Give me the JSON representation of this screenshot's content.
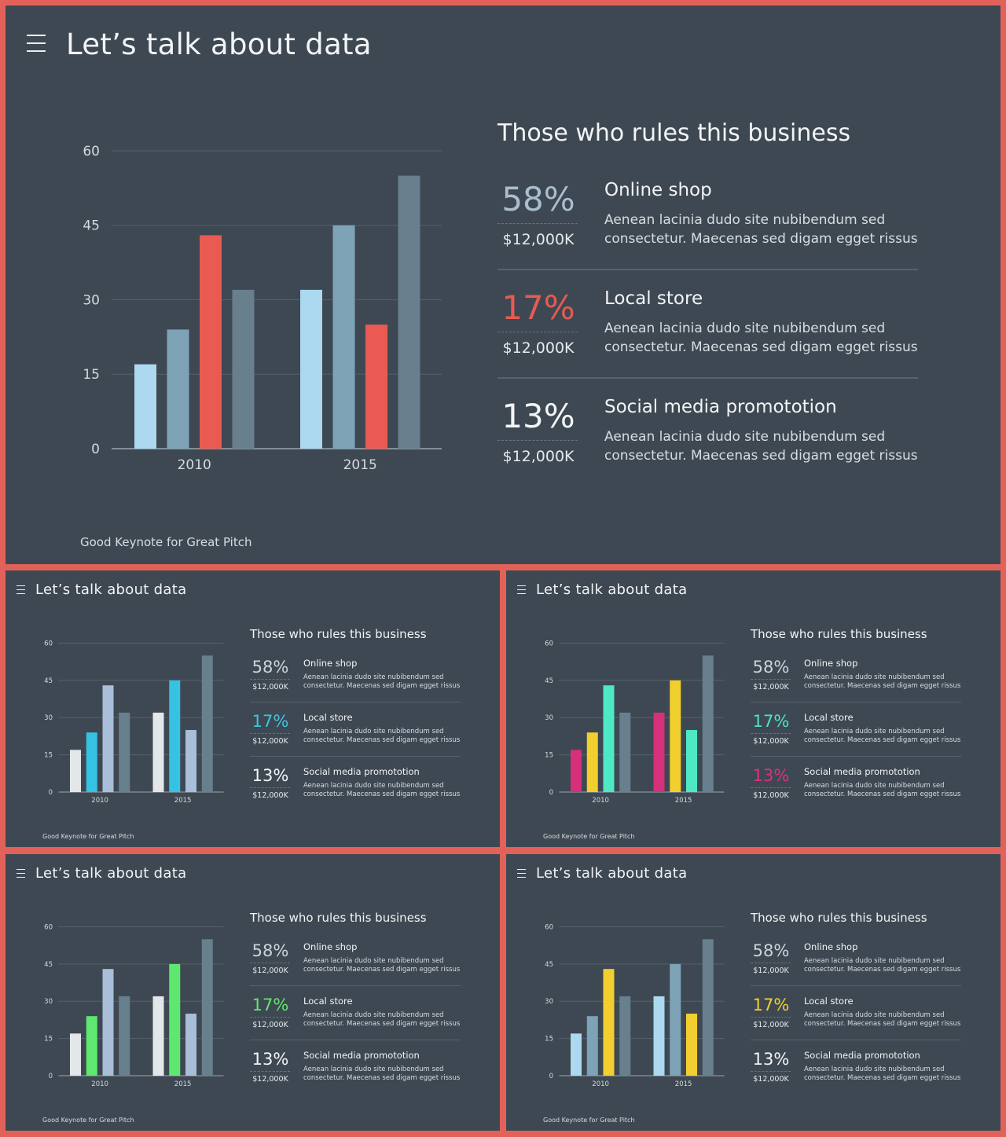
{
  "slides": [
    {
      "title": "Let’s talk about data",
      "footer": "Good Keynote for Great Pitch",
      "panel": {
        "heading": "Those who rules this business",
        "items": [
          {
            "percent": "58%",
            "amount": "$12,000K",
            "name": "Online shop",
            "desc": "Aenean lacinia  dudo  site nubibendum sed consectetur. Maecenas sed digam egget rissus",
            "color": "#a9bfce"
          },
          {
            "percent": "17%",
            "amount": "$12,000K",
            "name": "Local store",
            "desc": "Aenean lacinia  dudo  site nubibendum sed consectetur. Maecenas sed digam egget rissus",
            "color": "#e85a52"
          },
          {
            "percent": "13%",
            "amount": "$12,000K",
            "name": "Social media promototion",
            "desc": "Aenean lacinia  dudo  site nubibendum sed consectetur. Maecenas sed digam egget rissus",
            "color": "#f2f4f6"
          }
        ]
      },
      "chart_data": {
        "type": "bar",
        "categories": [
          "2010",
          "2015"
        ],
        "ylim": [
          0,
          60
        ],
        "yticks": [
          0,
          15,
          30,
          45,
          60
        ],
        "series": [
          {
            "values": [
              17,
              32
            ],
            "color": "#acd8f0"
          },
          {
            "values": [
              24,
              45
            ],
            "color": "#7ea3b7"
          },
          {
            "values": [
              43,
              25
            ],
            "color": "#e85a52"
          },
          {
            "values": [
              32,
              55
            ],
            "color": "#687f8e"
          }
        ]
      }
    },
    {
      "title": "Let’s talk about data",
      "footer": "Good Keynote for Great Pitch",
      "panel": {
        "heading": "Those who rules this business",
        "items": [
          {
            "percent": "58%",
            "amount": "$12,000K",
            "name": "Online shop",
            "desc": "Aenean lacinia  dudo  site nubibendum sed consectetur. Maecenas sed digam egget rissus",
            "color": "#c9d4dc"
          },
          {
            "percent": "17%",
            "amount": "$12,000K",
            "name": "Local store",
            "desc": "Aenean lacinia  dudo  site nubibendum sed consectetur. Maecenas sed digam egget rissus",
            "color": "#3fc4e0"
          },
          {
            "percent": "13%",
            "amount": "$12,000K",
            "name": "Social media promototion",
            "desc": "Aenean lacinia  dudo  site nubibendum sed consectetur. Maecenas sed digam egget rissus",
            "color": "#f2f4f6"
          }
        ]
      },
      "chart_data": {
        "type": "bar",
        "categories": [
          "2010",
          "2015"
        ],
        "ylim": [
          0,
          60
        ],
        "yticks": [
          0,
          15,
          30,
          45,
          60
        ],
        "series": [
          {
            "values": [
              17,
              32
            ],
            "color": "#e3e7ea"
          },
          {
            "values": [
              24,
              45
            ],
            "color": "#36c2e3"
          },
          {
            "values": [
              43,
              25
            ],
            "color": "#a9bed8"
          },
          {
            "values": [
              32,
              55
            ],
            "color": "#687f8e"
          }
        ]
      }
    },
    {
      "title": "Let’s talk about data",
      "footer": "Good Keynote for Great Pitch",
      "panel": {
        "heading": "Those who rules this business",
        "items": [
          {
            "percent": "58%",
            "amount": "$12,000K",
            "name": "Online shop",
            "desc": "Aenean lacinia  dudo  site nubibendum sed consectetur. Maecenas sed digam egget rissus",
            "color": "#c9d4dc"
          },
          {
            "percent": "17%",
            "amount": "$12,000K",
            "name": "Local store",
            "desc": "Aenean lacinia  dudo  site nubibendum sed consectetur. Maecenas sed digam egget rissus",
            "color": "#4ee3c4"
          },
          {
            "percent": "13%",
            "amount": "$12,000K",
            "name": "Social media promototion",
            "desc": "Aenean lacinia  dudo  site nubibendum sed consectetur. Maecenas sed digam egget rissus",
            "color": "#e0307a"
          }
        ]
      },
      "chart_data": {
        "type": "bar",
        "categories": [
          "2010",
          "2015"
        ],
        "ylim": [
          0,
          60
        ],
        "yticks": [
          0,
          15,
          30,
          45,
          60
        ],
        "series": [
          {
            "values": [
              17,
              32
            ],
            "color": "#d6307a"
          },
          {
            "values": [
              24,
              45
            ],
            "color": "#f1cf2e"
          },
          {
            "values": [
              43,
              25
            ],
            "color": "#4ee8c4"
          },
          {
            "values": [
              32,
              55
            ],
            "color": "#687f8e"
          }
        ]
      }
    },
    {
      "title": "Let’s talk about data",
      "footer": "Good Keynote for Great Pitch",
      "panel": {
        "heading": "Those who rules this business",
        "items": [
          {
            "percent": "58%",
            "amount": "$12,000K",
            "name": "Online shop",
            "desc": "Aenean lacinia  dudo  site nubibendum sed consectetur. Maecenas sed digam egget rissus",
            "color": "#c9d4dc"
          },
          {
            "percent": "17%",
            "amount": "$12,000K",
            "name": "Local store",
            "desc": "Aenean lacinia  dudo  site nubibendum sed consectetur. Maecenas sed digam egget rissus",
            "color": "#62e66b"
          },
          {
            "percent": "13%",
            "amount": "$12,000K",
            "name": "Social media promototion",
            "desc": "Aenean lacinia  dudo  site nubibendum sed consectetur. Maecenas sed digam egget rissus",
            "color": "#f2f4f6"
          }
        ]
      },
      "chart_data": {
        "type": "bar",
        "categories": [
          "2010",
          "2015"
        ],
        "ylim": [
          0,
          60
        ],
        "yticks": [
          0,
          15,
          30,
          45,
          60
        ],
        "series": [
          {
            "values": [
              17,
              32
            ],
            "color": "#e3e7ea"
          },
          {
            "values": [
              24,
              45
            ],
            "color": "#5ee870"
          },
          {
            "values": [
              43,
              25
            ],
            "color": "#a9bed8"
          },
          {
            "values": [
              32,
              55
            ],
            "color": "#687f8e"
          }
        ]
      }
    },
    {
      "title": "Let’s talk about data",
      "footer": "Good Keynote for Great Pitch",
      "panel": {
        "heading": "Those who rules this business",
        "items": [
          {
            "percent": "58%",
            "amount": "$12,000K",
            "name": "Online shop",
            "desc": "Aenean lacinia  dudo  site nubibendum sed consectetur. Maecenas sed digam egget rissus",
            "color": "#c9d4dc"
          },
          {
            "percent": "17%",
            "amount": "$12,000K",
            "name": "Local store",
            "desc": "Aenean lacinia  dudo  site nubibendum sed consectetur. Maecenas sed digam egget rissus",
            "color": "#f2cf2e"
          },
          {
            "percent": "13%",
            "amount": "$12,000K",
            "name": "Social media promototion",
            "desc": "Aenean lacinia  dudo  site nubibendum sed consectetur. Maecenas sed digam egget rissus",
            "color": "#f2f4f6"
          }
        ]
      },
      "chart_data": {
        "type": "bar",
        "categories": [
          "2010",
          "2015"
        ],
        "ylim": [
          0,
          60
        ],
        "yticks": [
          0,
          15,
          30,
          45,
          60
        ],
        "series": [
          {
            "values": [
              17,
              32
            ],
            "color": "#acd8f0"
          },
          {
            "values": [
              24,
              45
            ],
            "color": "#7ea3b7"
          },
          {
            "values": [
              43,
              25
            ],
            "color": "#f2cf2e"
          },
          {
            "values": [
              32,
              55
            ],
            "color": "#687f8e"
          }
        ]
      }
    }
  ]
}
